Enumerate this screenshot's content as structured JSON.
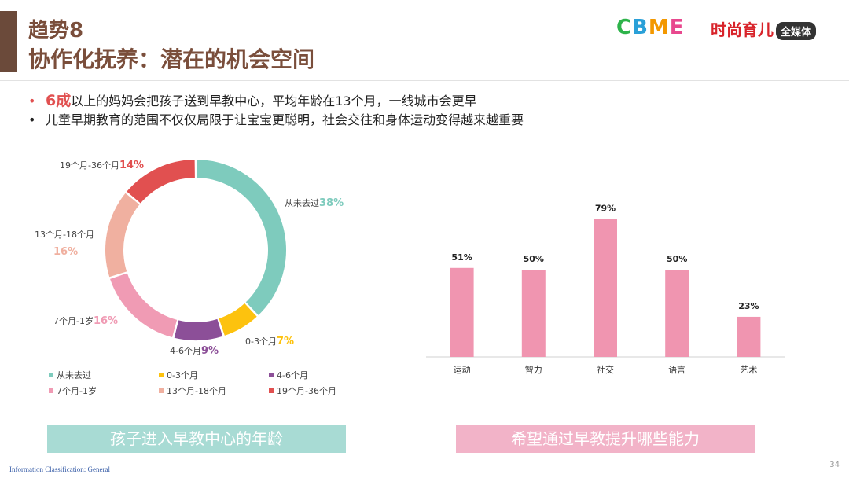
{
  "header": {
    "title_line1": "趋势8",
    "title_line2": "协作化抚养：潜在的机会空间",
    "logo_cbme": "CBME",
    "logo_sscx": "时尚育儿",
    "logo_sscx_tag": "全媒体"
  },
  "bullets": {
    "b1_highlight": "6成",
    "b1_rest": "以上的妈妈会把孩子送到早教中心，平均年龄在13个月，一线城市会更早",
    "b2": "儿童早期教育的范围不仅仅局限于让宝宝更聪明，社会交往和身体运动变得越来越重要"
  },
  "colors": {
    "title": "#7a4e3b",
    "accent_red": "#e15050",
    "bar": "#f095b0"
  },
  "chart_data": [
    {
      "type": "pie",
      "variant": "donut",
      "title": "孩子进入早教中心的年龄",
      "slices": [
        {
          "label": "从未去过",
          "value": 38,
          "display": "38%",
          "color": "#7ecbbd"
        },
        {
          "label": "0-3个月",
          "value": 7,
          "display": "7%",
          "color": "#fdc20e"
        },
        {
          "label": "4-6个月",
          "value": 9,
          "display": "9%",
          "color": "#8c4f98"
        },
        {
          "label": "7个月-1岁",
          "value": 16,
          "display": "16%",
          "color": "#f09bb4"
        },
        {
          "label": "13个月-18个月",
          "value": 16,
          "display": "16%",
          "color": "#f0b0a0"
        },
        {
          "label": "19个月-36个月",
          "value": 14,
          "display": "14%",
          "color": "#e15050"
        }
      ],
      "legend_position": "bottom"
    },
    {
      "type": "bar",
      "title": "希望通过早教提升哪些能力",
      "categories": [
        "运动",
        "智力",
        "社交",
        "语言",
        "艺术"
      ],
      "values": [
        51,
        50,
        79,
        50,
        23
      ],
      "labels": [
        "51%",
        "50%",
        "79%",
        "50%",
        "23%"
      ],
      "ylim": [
        0,
        100
      ]
    }
  ],
  "footer": {
    "classification": "Information Classification: General",
    "page": "34"
  }
}
